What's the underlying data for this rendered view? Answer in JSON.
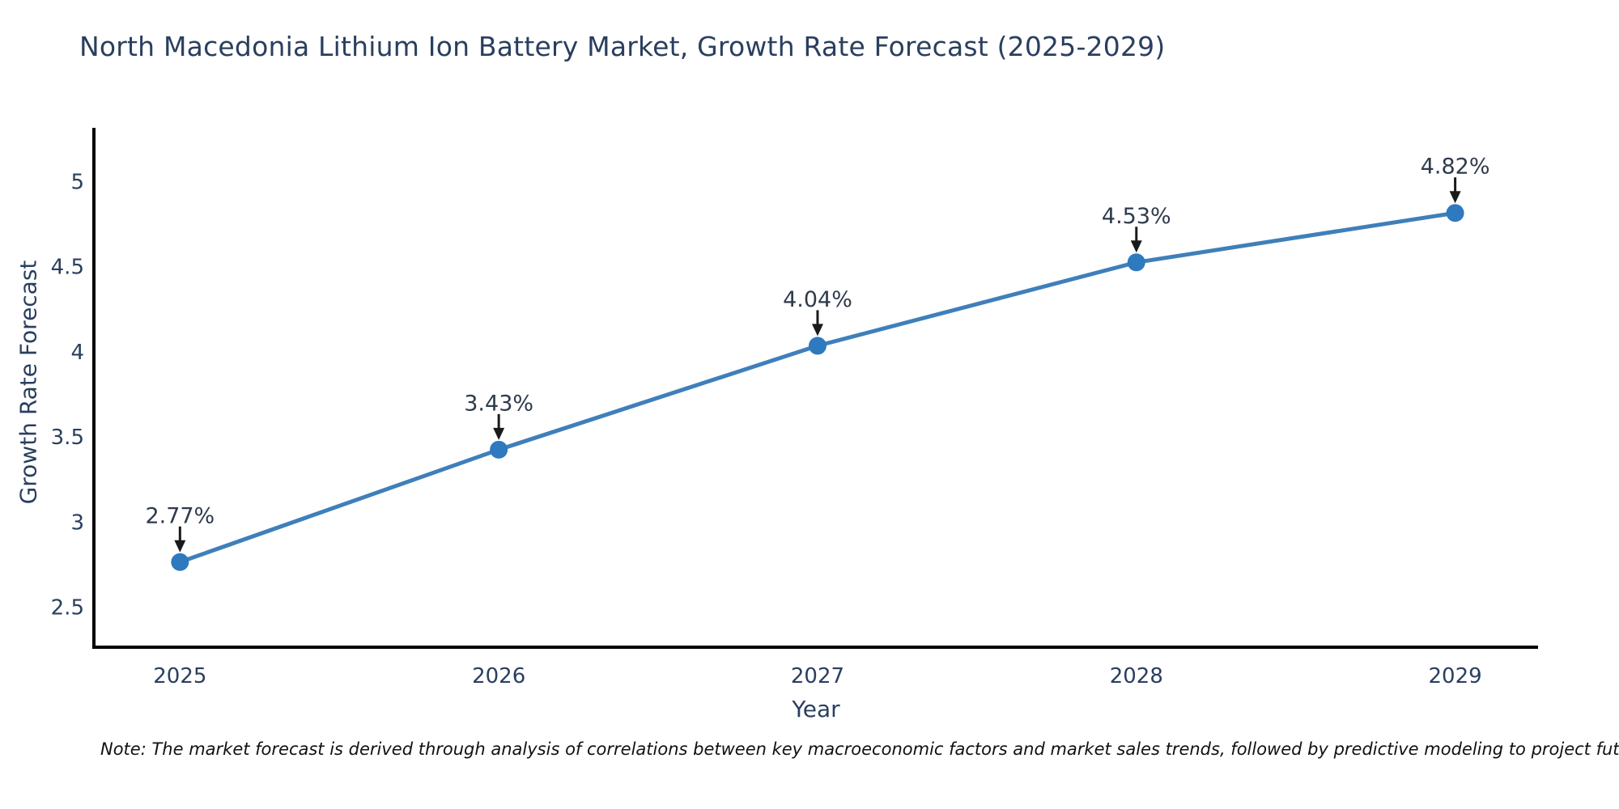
{
  "title": "North Macedonia Lithium Ion Battery Market, Growth Rate Forecast (2025-2029)",
  "note": "Note: The market forecast is derived through analysis of correlations between key macroeconomic factors and market sales trends, followed by predictive modeling to project future sales.",
  "chart_data": {
    "type": "line",
    "title": "North Macedonia Lithium Ion Battery Market, Growth Rate Forecast (2025-2029)",
    "xlabel": "Year",
    "ylabel": "Growth Rate Forecast",
    "x": [
      2025,
      2026,
      2027,
      2028,
      2029
    ],
    "values": [
      2.77,
      3.43,
      4.04,
      4.53,
      4.82
    ],
    "point_labels": [
      "2.77%",
      "3.43%",
      "4.04%",
      "4.53%",
      "4.82%"
    ],
    "yticks": [
      2.5,
      3,
      3.5,
      4,
      4.5,
      5
    ],
    "xlim": [
      2024.73,
      2029.26
    ],
    "ylim": [
      2.27,
      5.32
    ],
    "grid": false,
    "legend": false,
    "line_color": "#3f7fba",
    "marker_color": "#2f79bf",
    "axis_color": "#000000",
    "text_color": "#2a3f5f",
    "annotation_arrow_color": "#1a1a1a"
  }
}
